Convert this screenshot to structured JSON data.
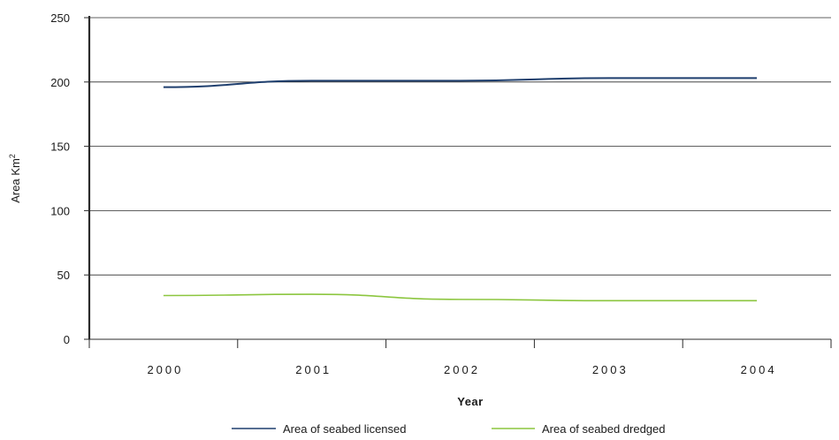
{
  "chart_data": {
    "type": "line",
    "title": "",
    "xlabel": "Year",
    "ylabel": "Area Km",
    "ylabel_superscript": "2",
    "categories": [
      "2000",
      "2001",
      "2002",
      "2003",
      "2004"
    ],
    "series": [
      {
        "name": "Area of seabed licensed",
        "color": "#1f3f6e",
        "values": [
          196,
          201,
          201,
          203,
          203
        ]
      },
      {
        "name": "Area of seabed dredged",
        "color": "#8cc63f",
        "values": [
          34,
          35,
          31,
          30,
          30
        ]
      }
    ],
    "ylim": [
      0,
      250
    ],
    "yticks": [
      "0",
      "50",
      "100",
      "150",
      "200",
      "250"
    ],
    "grid": "horizontal",
    "legend_position": "bottom-center"
  }
}
